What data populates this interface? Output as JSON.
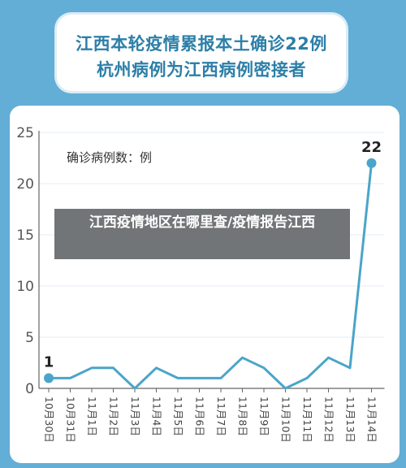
{
  "header": {
    "line1": "江西本轮疫情累报本土确诊22例",
    "line2": "杭州病例为江西病例密接者"
  },
  "overlay": {
    "text": "江西疫情地区在哪里查/疫情报告江西"
  },
  "colors": {
    "background": "#62aed6",
    "line": "#4aa5c9",
    "title_text": "#2d7fa8",
    "overlay_bg": "#5f6264"
  },
  "chart_data": {
    "type": "line",
    "legend_label": "确诊病例数：例",
    "categories": [
      "10月30日",
      "10月31日",
      "11月1日",
      "11月2日",
      "11月3日",
      "11月4日",
      "11月5日",
      "11月6日",
      "11月7日",
      "11月8日",
      "11月9日",
      "11月10日",
      "11月11日",
      "11月12日",
      "11月13日",
      "11月14日"
    ],
    "values": [
      1,
      1,
      2,
      2,
      0,
      2,
      1,
      1,
      1,
      3,
      2,
      0,
      1,
      3,
      2,
      22
    ],
    "data_labels": [
      {
        "index": 0,
        "text": "1"
      },
      {
        "index": 15,
        "text": "22"
      }
    ],
    "yticks": [
      0,
      5,
      10,
      15,
      20,
      25
    ],
    "ylim": [
      0,
      25
    ],
    "grid": true
  }
}
